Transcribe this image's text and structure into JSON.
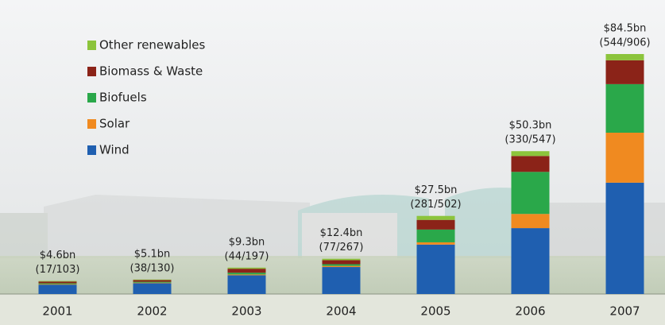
{
  "chart_data": {
    "type": "bar",
    "stacked": true,
    "categories": [
      "2001",
      "2002",
      "2003",
      "2004",
      "2005",
      "2006",
      "2007"
    ],
    "series": [
      {
        "name": "Wind",
        "color": "#1f5fb0",
        "values": [
          3.3,
          3.8,
          6.6,
          9.5,
          17.4,
          23.2,
          39.2
        ]
      },
      {
        "name": "Solar",
        "color": "#f08a20",
        "values": [
          0.2,
          0.2,
          0.3,
          0.4,
          0.8,
          5.0,
          17.6
        ]
      },
      {
        "name": "Biofuels",
        "color": "#2aa84a",
        "values": [
          0.3,
          0.3,
          0.6,
          0.6,
          4.5,
          14.8,
          17.1
        ]
      },
      {
        "name": "Biomass & Waste",
        "color": "#8b2318",
        "values": [
          0.6,
          0.6,
          1.4,
          1.4,
          3.4,
          5.6,
          8.4
        ]
      },
      {
        "name": "Other renewables",
        "color": "#8cc43c",
        "values": [
          0.2,
          0.2,
          0.4,
          0.5,
          1.4,
          1.7,
          2.2
        ]
      }
    ],
    "totals": {
      "values": [
        4.6,
        5.1,
        9.3,
        12.4,
        27.5,
        50.3,
        84.5
      ],
      "value_labels": [
        "$4.6bn",
        "$5.1bn",
        "$9.3bn",
        "$12.4bn",
        "$27.5bn",
        "$50.3bn",
        "$84.5bn"
      ]
    },
    "deal_labels": [
      "(17/103)",
      "(38/130)",
      "(44/197)",
      "(77/267)",
      "(281/502)",
      "(330/547)",
      "(544/906)"
    ]
  }
}
